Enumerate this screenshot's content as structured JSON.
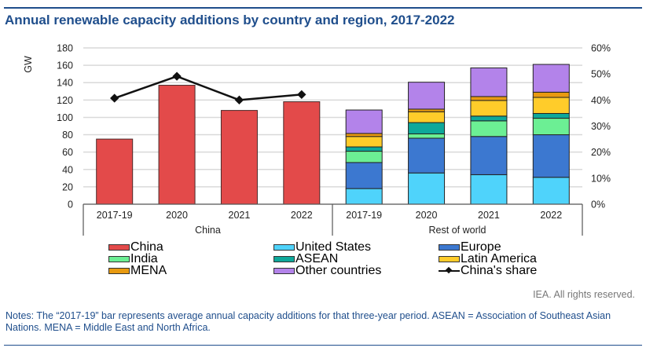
{
  "title": "Annual renewable capacity additions by country and region, 2017-2022",
  "rights": "IEA. All rights reserved.",
  "notes": "Notes: The “2017-19” bar represents average annual capacity additions for that three-year period. ASEAN = Association of Southeast Asian Nations. MENA = Middle East and North Africa.",
  "legend": [
    {
      "label": "China",
      "color": "#e34a4a",
      "type": "bar"
    },
    {
      "label": "United States",
      "color": "#4fd3fb",
      "type": "bar"
    },
    {
      "label": "Europe",
      "color": "#3c78d0",
      "type": "bar"
    },
    {
      "label": "India",
      "color": "#6cef94",
      "type": "bar"
    },
    {
      "label": "ASEAN",
      "color": "#0ea89a",
      "type": "bar"
    },
    {
      "label": "Latin America",
      "color": "#ffcc2a",
      "type": "bar"
    },
    {
      "label": "MENA",
      "color": "#e89a10",
      "type": "bar"
    },
    {
      "label": "Other countries",
      "color": "#b383ea",
      "type": "bar"
    },
    {
      "label": "China's share",
      "color": "#111111",
      "type": "line"
    }
  ],
  "chart_data": {
    "type": "bar",
    "title": "Annual renewable capacity additions by country and region, 2017-2022",
    "ylabel": "GW",
    "ylim": [
      0,
      180
    ],
    "yticks": [
      0,
      20,
      40,
      60,
      80,
      100,
      120,
      140,
      160,
      180
    ],
    "y2lim": [
      0,
      60
    ],
    "y2ticks": [
      "0%",
      "10%",
      "20%",
      "30%",
      "40%",
      "50%",
      "60%"
    ],
    "grid": true,
    "legend_position": "bottom",
    "groups": [
      {
        "name": "China",
        "categories": [
          "2017-19",
          "2020",
          "2021",
          "2022"
        ]
      },
      {
        "name": "Rest of world",
        "categories": [
          "2017-19",
          "2020",
          "2021",
          "2022"
        ]
      }
    ],
    "china": {
      "categories": [
        "2017-19",
        "2020",
        "2021",
        "2022"
      ],
      "values": [
        75,
        137,
        108,
        118
      ],
      "color": "#e34a4a"
    },
    "china_share": {
      "name": "China's share",
      "unit": "%",
      "values": [
        40.7,
        49.1,
        40.0,
        42.1
      ]
    },
    "rest_of_world": {
      "categories": [
        "2017-19",
        "2020",
        "2021",
        "2022"
      ],
      "series": [
        {
          "name": "United States",
          "color": "#4fd3fb",
          "values": [
            18,
            36,
            34,
            31
          ]
        },
        {
          "name": "Europe",
          "color": "#3c78d0",
          "values": [
            30,
            40,
            44,
            49
          ]
        },
        {
          "name": "India",
          "color": "#6cef94",
          "values": [
            13,
            5,
            18,
            19
          ]
        },
        {
          "name": "ASEAN",
          "color": "#0ea89a",
          "values": [
            5,
            13,
            5.5,
            5.5
          ]
        },
        {
          "name": "Latin America",
          "color": "#ffcc2a",
          "values": [
            12,
            12.5,
            18,
            18.5
          ]
        },
        {
          "name": "MENA",
          "color": "#e89a10",
          "values": [
            3.5,
            3,
            4.5,
            6
          ]
        },
        {
          "name": "Other countries",
          "color": "#b383ea",
          "values": [
            27,
            31,
            33,
            32
          ]
        }
      ]
    }
  }
}
